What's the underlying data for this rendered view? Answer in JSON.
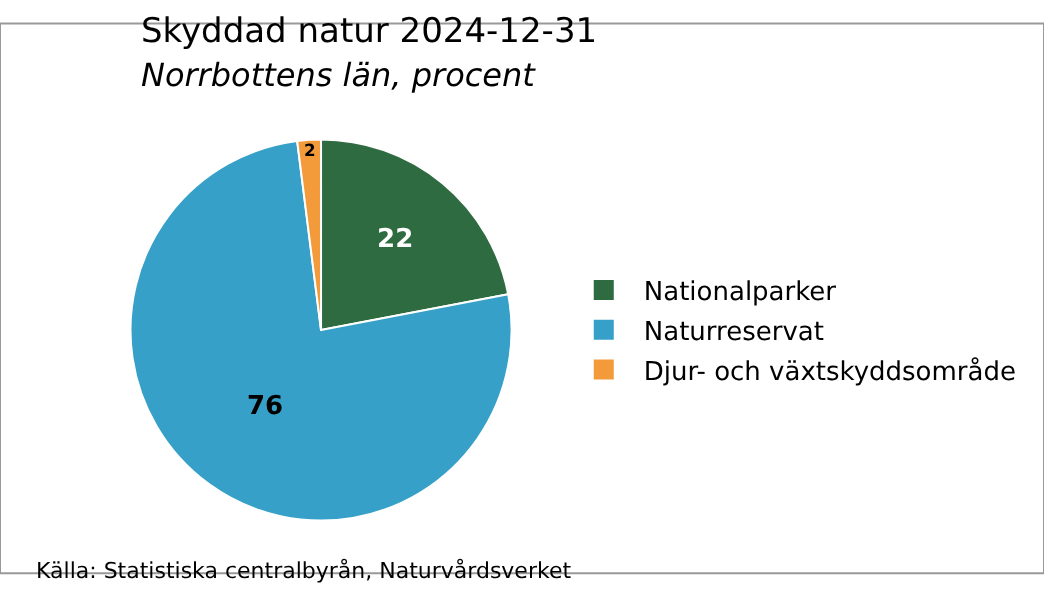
{
  "chart_data": {
    "type": "pie",
    "title": "Skyddad natur 2024-12-31",
    "subtitle": "Norrbottens län, procent",
    "categories": [
      "Nationalparker",
      "Naturreservat",
      "Djur- och växtskyddsområde"
    ],
    "values": [
      22,
      76,
      2
    ],
    "colors": [
      "#2e6b40",
      "#36a0c8",
      "#f39a3a"
    ],
    "data_labels": true,
    "legend": "right",
    "annotations": [
      "Källa: Statistiska centralbyrån, Naturvårdsverket"
    ]
  }
}
